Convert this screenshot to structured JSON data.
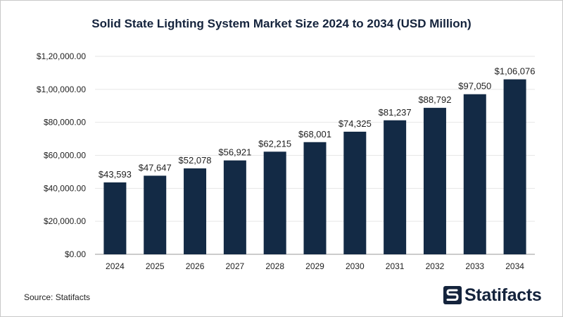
{
  "title": "Solid State Lighting System Market Size 2024 to 2034 (USD Million)",
  "source": "Source: Statifacts",
  "brand": {
    "name": "Statifacts",
    "logo_icon": "statifacts-logo-icon"
  },
  "colors": {
    "bar": "#132a45",
    "title": "#14233c",
    "grid": "#e6e6e6"
  },
  "chart_data": {
    "type": "bar",
    "title": "Solid State Lighting System Market Size 2024 to 2034 (USD Million)",
    "xlabel": "",
    "ylabel": "",
    "categories": [
      "2024",
      "2025",
      "2026",
      "2027",
      "2028",
      "2029",
      "2030",
      "2031",
      "2032",
      "2033",
      "2034"
    ],
    "values": [
      43593,
      47647,
      52078,
      56921,
      62215,
      68001,
      74325,
      81237,
      88792,
      97050,
      106076
    ],
    "data_labels": [
      "$43,593",
      "$47,647",
      "$52,078",
      "$56,921",
      "$62,215",
      "$68,001",
      "$74,325",
      "$81,237",
      "$88,792",
      "$97,050",
      "$1,06,076"
    ],
    "ylim": [
      0,
      120000
    ],
    "yticks": [
      0,
      20000,
      40000,
      60000,
      80000,
      100000,
      120000
    ],
    "ytick_labels": [
      "$0.00",
      "$20,000.00",
      "$40,000.00",
      "$60,000.00",
      "$80,000.00",
      "$1,00,000.00",
      "$1,20,000.00"
    ],
    "grid": true,
    "legend": "none"
  }
}
